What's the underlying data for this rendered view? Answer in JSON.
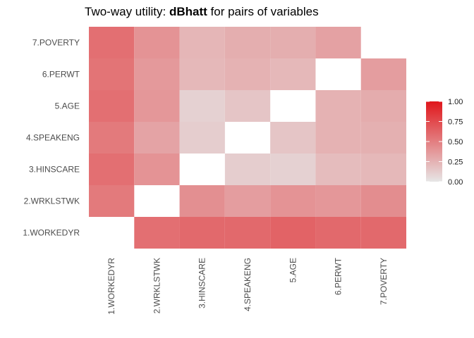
{
  "chart_data": {
    "type": "heatmap",
    "title_prefix": "Two-way utility: ",
    "title_bold": "dBhatt",
    "title_suffix": " for pairs of variables",
    "variables": [
      "1.WORKEDYR",
      "2.WRKLSTWK",
      "3.HINSCARE",
      "4.SPEAKENG",
      "5.AGE",
      "6.PERWT",
      "7.POVERTY"
    ],
    "x_categories": [
      "1.WORKEDYR",
      "2.WRKLSTWK",
      "3.HINSCARE",
      "4.SPEAKENG",
      "5.AGE",
      "6.PERWT",
      "7.POVERTY"
    ],
    "y_categories": [
      "1.WORKEDYR",
      "2.WRKLSTWK",
      "3.HINSCARE",
      "4.SPEAKENG",
      "5.AGE",
      "6.PERWT",
      "7.POVERTY"
    ],
    "cells": [
      {
        "x": "1.WORKEDYR",
        "y": "2.WRKLSTWK",
        "value": 0.52
      },
      {
        "x": "1.WORKEDYR",
        "y": "3.HINSCARE",
        "value": 0.57
      },
      {
        "x": "1.WORKEDYR",
        "y": "4.SPEAKENG",
        "value": 0.52
      },
      {
        "x": "1.WORKEDYR",
        "y": "5.AGE",
        "value": 0.57
      },
      {
        "x": "1.WORKEDYR",
        "y": "6.PERWT",
        "value": 0.55
      },
      {
        "x": "1.WORKEDYR",
        "y": "7.POVERTY",
        "value": 0.57
      },
      {
        "x": "2.WRKLSTWK",
        "y": "1.WORKEDYR",
        "value": 0.57
      },
      {
        "x": "2.WRKLSTWK",
        "y": "3.HINSCARE",
        "value": 0.4
      },
      {
        "x": "2.WRKLSTWK",
        "y": "4.SPEAKENG",
        "value": 0.32
      },
      {
        "x": "2.WRKLSTWK",
        "y": "5.AGE",
        "value": 0.38
      },
      {
        "x": "2.WRKLSTWK",
        "y": "6.PERWT",
        "value": 0.37
      },
      {
        "x": "2.WRKLSTWK",
        "y": "7.POVERTY",
        "value": 0.4
      },
      {
        "x": "3.HINSCARE",
        "y": "1.WORKEDYR",
        "value": 0.6
      },
      {
        "x": "3.HINSCARE",
        "y": "2.WRKLSTWK",
        "value": 0.42
      },
      {
        "x": "3.HINSCARE",
        "y": "4.SPEAKENG",
        "value": 0.12
      },
      {
        "x": "3.HINSCARE",
        "y": "5.AGE",
        "value": 0.1
      },
      {
        "x": "3.HINSCARE",
        "y": "6.PERWT",
        "value": 0.22
      },
      {
        "x": "3.HINSCARE",
        "y": "7.POVERTY",
        "value": 0.23
      },
      {
        "x": "4.SPEAKENG",
        "y": "1.WORKEDYR",
        "value": 0.6
      },
      {
        "x": "4.SPEAKENG",
        "y": "2.WRKLSTWK",
        "value": 0.35
      },
      {
        "x": "4.SPEAKENG",
        "y": "3.HINSCARE",
        "value": 0.12
      },
      {
        "x": "4.SPEAKENG",
        "y": "5.AGE",
        "value": 0.16
      },
      {
        "x": "4.SPEAKENG",
        "y": "6.PERWT",
        "value": 0.25
      },
      {
        "x": "4.SPEAKENG",
        "y": "7.POVERTY",
        "value": 0.27
      },
      {
        "x": "5.AGE",
        "y": "1.WORKEDYR",
        "value": 0.63
      },
      {
        "x": "5.AGE",
        "y": "2.WRKLSTWK",
        "value": 0.4
      },
      {
        "x": "5.AGE",
        "y": "3.HINSCARE",
        "value": 0.1
      },
      {
        "x": "5.AGE",
        "y": "4.SPEAKENG",
        "value": 0.16
      },
      {
        "x": "5.AGE",
        "y": "6.PERWT",
        "value": 0.22
      },
      {
        "x": "5.AGE",
        "y": "7.POVERTY",
        "value": 0.27
      },
      {
        "x": "6.PERWT",
        "y": "1.WORKEDYR",
        "value": 0.6
      },
      {
        "x": "6.PERWT",
        "y": "2.WRKLSTWK",
        "value": 0.38
      },
      {
        "x": "6.PERWT",
        "y": "3.HINSCARE",
        "value": 0.2
      },
      {
        "x": "6.PERWT",
        "y": "4.SPEAKENG",
        "value": 0.25
      },
      {
        "x": "6.PERWT",
        "y": "5.AGE",
        "value": 0.25
      },
      {
        "x": "6.PERWT",
        "y": "7.POVERTY",
        "value": 0.33
      },
      {
        "x": "7.POVERTY",
        "y": "1.WORKEDYR",
        "value": 0.6
      },
      {
        "x": "7.POVERTY",
        "y": "2.WRKLSTWK",
        "value": 0.43
      },
      {
        "x": "7.POVERTY",
        "y": "3.HINSCARE",
        "value": 0.22
      },
      {
        "x": "7.POVERTY",
        "y": "4.SPEAKENG",
        "value": 0.26
      },
      {
        "x": "7.POVERTY",
        "y": "5.AGE",
        "value": 0.28
      },
      {
        "x": "7.POVERTY",
        "y": "6.PERWT",
        "value": 0.35
      }
    ],
    "color_scale": {
      "low": "#e6e6e6",
      "high": "#e0161b",
      "min": 0,
      "max": 1
    },
    "legend": {
      "position": "right",
      "ticks": [
        "1.00",
        "0.75",
        "0.50",
        "0.25",
        "0.00"
      ]
    },
    "grid": false
  }
}
